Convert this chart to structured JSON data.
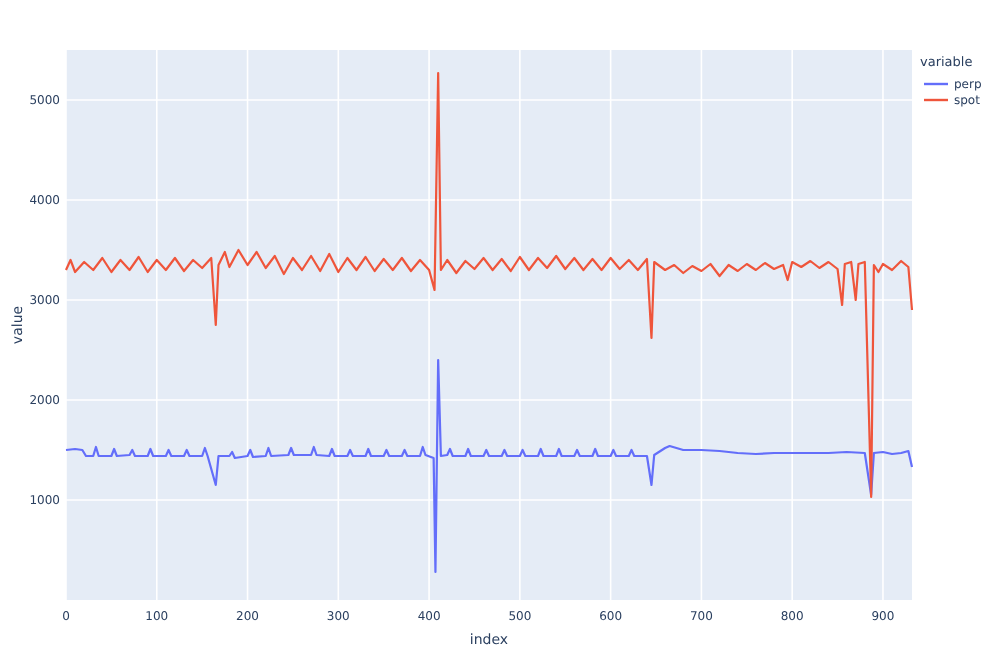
{
  "chart_data": {
    "type": "line",
    "xlabel": "index",
    "ylabel": "value",
    "legend_title": "variable",
    "legend": "top right",
    "grid": true,
    "xlim": [
      0,
      932
    ],
    "ylim": [
      0,
      5500
    ],
    "xticks": [
      0,
      100,
      200,
      300,
      400,
      500,
      600,
      700,
      800,
      900
    ],
    "yticks": [
      1000,
      2000,
      3000,
      4000,
      5000
    ],
    "series": [
      {
        "name": "perp",
        "color": "#636efa",
        "x": [
          0,
          10,
          18,
          22,
          30,
          33,
          36,
          50,
          53,
          56,
          70,
          73,
          76,
          90,
          93,
          96,
          110,
          113,
          116,
          130,
          133,
          136,
          150,
          153,
          156,
          165,
          168,
          180,
          183,
          186,
          200,
          203,
          206,
          220,
          223,
          226,
          245,
          248,
          251,
          270,
          273,
          276,
          290,
          293,
          296,
          310,
          313,
          316,
          330,
          333,
          336,
          350,
          353,
          356,
          370,
          373,
          376,
          390,
          393,
          396,
          405,
          407,
          410,
          413,
          420,
          423,
          426,
          440,
          443,
          446,
          460,
          463,
          466,
          480,
          483,
          486,
          500,
          503,
          506,
          520,
          523,
          526,
          540,
          543,
          546,
          560,
          563,
          566,
          580,
          583,
          586,
          600,
          603,
          606,
          620,
          623,
          626,
          640,
          645,
          648,
          660,
          665,
          680,
          700,
          720,
          740,
          760,
          780,
          800,
          820,
          840,
          860,
          880,
          887,
          890,
          900,
          910,
          920,
          928,
          932
        ],
        "values": [
          1500,
          1510,
          1500,
          1440,
          1440,
          1530,
          1440,
          1440,
          1510,
          1440,
          1450,
          1500,
          1440,
          1440,
          1510,
          1440,
          1440,
          1500,
          1440,
          1440,
          1500,
          1440,
          1440,
          1520,
          1440,
          1150,
          1440,
          1440,
          1480,
          1420,
          1440,
          1500,
          1430,
          1440,
          1520,
          1440,
          1450,
          1520,
          1450,
          1450,
          1530,
          1450,
          1440,
          1510,
          1440,
          1440,
          1500,
          1440,
          1440,
          1510,
          1440,
          1440,
          1500,
          1440,
          1440,
          1500,
          1440,
          1440,
          1530,
          1450,
          1420,
          280,
          2400,
          1440,
          1450,
          1510,
          1440,
          1440,
          1510,
          1440,
          1440,
          1500,
          1440,
          1440,
          1500,
          1440,
          1440,
          1500,
          1440,
          1440,
          1510,
          1440,
          1440,
          1510,
          1440,
          1440,
          1500,
          1440,
          1440,
          1510,
          1440,
          1440,
          1500,
          1440,
          1440,
          1500,
          1440,
          1440,
          1150,
          1450,
          1520,
          1540,
          1500,
          1500,
          1490,
          1470,
          1460,
          1470,
          1470,
          1470,
          1470,
          1480,
          1470,
          1050,
          1470,
          1480,
          1460,
          1470,
          1490,
          1330
        ]
      },
      {
        "name": "spot",
        "color": "#ef553b",
        "x": [
          0,
          5,
          10,
          20,
          30,
          40,
          50,
          60,
          70,
          80,
          90,
          100,
          110,
          120,
          130,
          140,
          150,
          160,
          165,
          168,
          175,
          180,
          190,
          200,
          210,
          220,
          230,
          240,
          250,
          260,
          270,
          280,
          290,
          300,
          310,
          320,
          330,
          340,
          350,
          360,
          370,
          380,
          390,
          400,
          406,
          410,
          413,
          420,
          430,
          440,
          450,
          460,
          470,
          480,
          490,
          500,
          510,
          520,
          530,
          540,
          550,
          560,
          570,
          580,
          590,
          600,
          610,
          620,
          630,
          640,
          645,
          648,
          660,
          670,
          680,
          690,
          700,
          710,
          720,
          730,
          740,
          750,
          760,
          770,
          780,
          790,
          795,
          800,
          810,
          820,
          830,
          840,
          850,
          855,
          858,
          865,
          870,
          873,
          880,
          887,
          890,
          895,
          900,
          910,
          920,
          928,
          932
        ],
        "values": [
          3300,
          3400,
          3280,
          3380,
          3300,
          3420,
          3280,
          3400,
          3300,
          3430,
          3280,
          3400,
          3300,
          3420,
          3290,
          3400,
          3320,
          3420,
          2750,
          3350,
          3480,
          3330,
          3500,
          3350,
          3480,
          3320,
          3440,
          3260,
          3420,
          3300,
          3440,
          3290,
          3460,
          3280,
          3420,
          3300,
          3430,
          3290,
          3410,
          3300,
          3420,
          3290,
          3400,
          3300,
          3100,
          5270,
          3300,
          3400,
          3270,
          3390,
          3310,
          3420,
          3300,
          3410,
          3290,
          3430,
          3300,
          3420,
          3320,
          3440,
          3310,
          3420,
          3300,
          3410,
          3300,
          3420,
          3310,
          3400,
          3300,
          3410,
          2620,
          3380,
          3300,
          3350,
          3270,
          3340,
          3290,
          3360,
          3240,
          3350,
          3290,
          3360,
          3300,
          3370,
          3310,
          3350,
          3200,
          3380,
          3330,
          3390,
          3320,
          3380,
          3310,
          2950,
          3360,
          3380,
          3000,
          3360,
          3380,
          1030,
          3350,
          3280,
          3360,
          3300,
          3390,
          3330,
          2900
        ]
      }
    ]
  }
}
